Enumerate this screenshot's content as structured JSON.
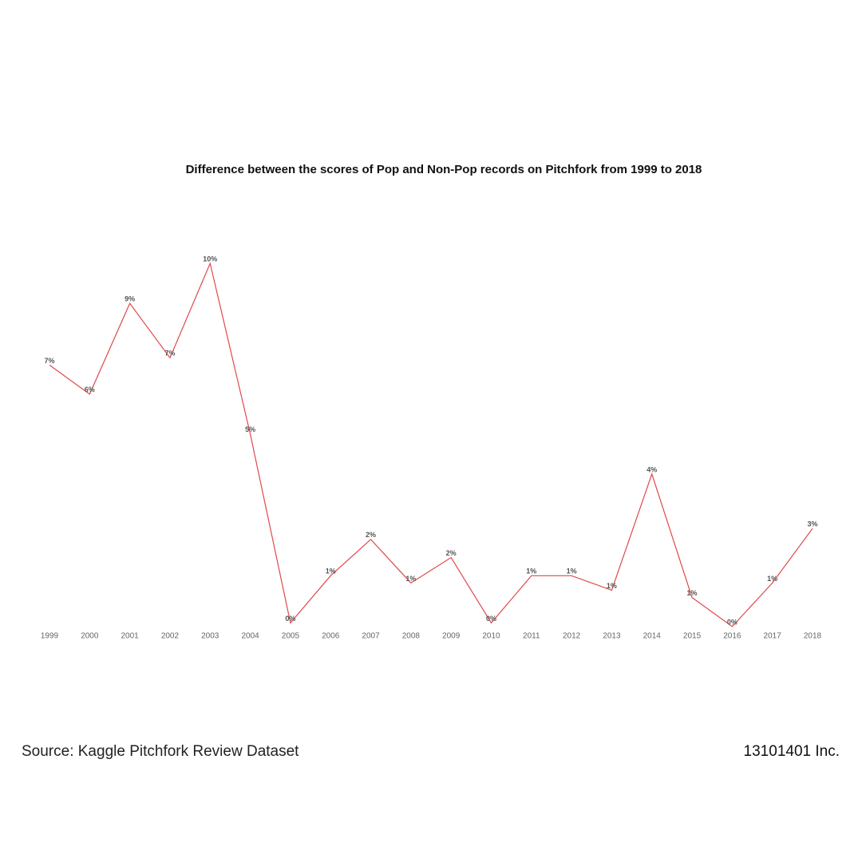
{
  "chart_data": {
    "type": "line",
    "title": "Difference between the scores of Pop and Non-Pop records on Pitchfork from 1999 to 2018",
    "categories": [
      "1999",
      "2000",
      "2001",
      "2002",
      "2003",
      "2004",
      "2005",
      "2006",
      "2007",
      "2008",
      "2009",
      "2010",
      "2011",
      "2012",
      "2013",
      "2014",
      "2015",
      "2016",
      "2017",
      "2018"
    ],
    "series": [
      {
        "name": "Difference",
        "color": "#e0484b",
        "values": [
          7.2,
          6.4,
          8.9,
          7.4,
          10.0,
          5.3,
          0.1,
          1.4,
          2.4,
          1.2,
          1.9,
          0.1,
          1.4,
          1.4,
          1.0,
          4.2,
          0.8,
          0.0,
          1.2,
          2.7
        ],
        "value_labels": [
          "7%",
          "6%",
          "9%",
          "7%",
          "10%",
          "5%",
          "0%",
          "1%",
          "2%",
          "1%",
          "2%",
          "0%",
          "1%",
          "1%",
          "1%",
          "4%",
          "1%",
          "0%",
          "1%",
          "3%"
        ]
      }
    ],
    "source": "Source: Kaggle Pitchfork Review Dataset",
    "credit": "13101401 Inc."
  }
}
